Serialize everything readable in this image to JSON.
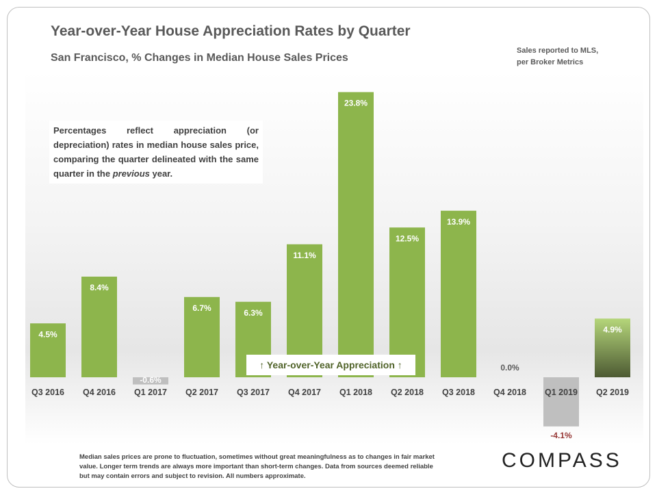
{
  "title": "Year-over-Year House Appreciation Rates by Quarter",
  "subtitle": "San Francisco, % Changes in Median House Sales Prices",
  "source_lines": [
    "Sales reported to MLS,",
    "per Broker Metrics"
  ],
  "note": {
    "before": "Percentages reflect appreciation (or depreciation) rates in median house sales price, comparing the quarter delineated with the same quarter in the ",
    "italic": "previous",
    "after": " year."
  },
  "callout": "↑ Year-over-Year Appreciation ↑",
  "footer": "Median sales prices are prone to fluctuation, sometimes without great meaningfulness as to changes in fair market value. Longer term trends are always more important than short-term changes. Data from sources deemed reliable but may contain errors and subject to revision. All numbers approximate.",
  "logo": "COMPASS",
  "colors": {
    "positive": "#8db54c",
    "negative": "#bfbfbf",
    "negative_label": "#963634",
    "latest": "#a9cf6b"
  },
  "chart_data": {
    "type": "bar",
    "title": "Year-over-Year House Appreciation Rates by Quarter",
    "categories": [
      "Q3 2016",
      "Q4 2016",
      "Q1 2017",
      "Q2 2017",
      "Q3 2017",
      "Q4 2017",
      "Q1 2018",
      "Q2 2018",
      "Q3 2018",
      "Q4 2018",
      "Q1 2019",
      "Q2 2019"
    ],
    "values": [
      4.5,
      8.4,
      -0.6,
      6.7,
      6.3,
      11.1,
      23.8,
      12.5,
      13.9,
      0.0,
      -4.1,
      4.9
    ],
    "labels": [
      "4.5%",
      "8.4%",
      "-0.6%",
      "6.7%",
      "6.3%",
      "11.1%",
      "23.8%",
      "12.5%",
      "13.9%",
      "0.0%",
      "-4.1%",
      "4.9%"
    ],
    "unit": "%",
    "grid": false,
    "legend": "none"
  }
}
